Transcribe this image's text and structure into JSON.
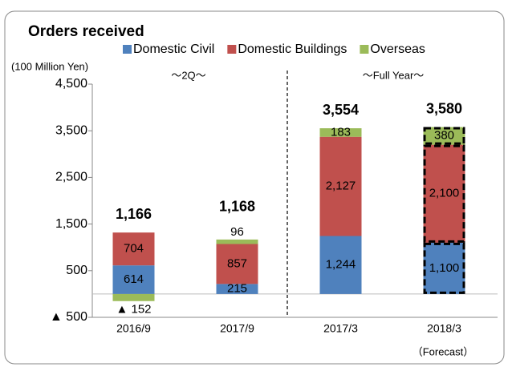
{
  "chart_data": {
    "type": "stacked_bar",
    "title": "Orders received",
    "unit_label": "(100 Million Yen)",
    "annotations": [
      "～2Q～",
      "～Full Year～",
      "（Forecast）"
    ],
    "categories": [
      "2016/9",
      "2017/9",
      "2017/3",
      "2018/3"
    ],
    "series": [
      {
        "name": "Domestic Civil",
        "color": "#4f81bd",
        "values": [
          614,
          215,
          1244,
          1100
        ],
        "value_labels": [
          "614",
          "215",
          "1,244",
          "1,100"
        ]
      },
      {
        "name": "Domestic Buildings",
        "color": "#c0504d",
        "values": [
          704,
          857,
          2127,
          2100
        ],
        "value_labels": [
          "704",
          "857",
          "2,127",
          "2,100"
        ]
      },
      {
        "name": "Overseas",
        "color": "#9bbb59",
        "values": [
          -152,
          96,
          183,
          380
        ],
        "value_labels": [
          "▲ 152",
          "96",
          "183",
          "380"
        ]
      }
    ],
    "totals": {
      "values": [
        1166,
        1168,
        3554,
        3580
      ],
      "value_labels": [
        "1,166",
        "1,168",
        "3,554",
        "3,580"
      ]
    },
    "ylim": [
      -500,
      4500
    ],
    "yticks": [
      {
        "value": -500,
        "label": "▲ 500"
      },
      500,
      {
        "value": 1500,
        "label": "1,500"
      },
      {
        "value": 2500,
        "label": "2,500"
      },
      {
        "value": 3500,
        "label": "3,500"
      },
      {
        "value": 4500,
        "label": "4,500"
      }
    ],
    "grid": false
  }
}
